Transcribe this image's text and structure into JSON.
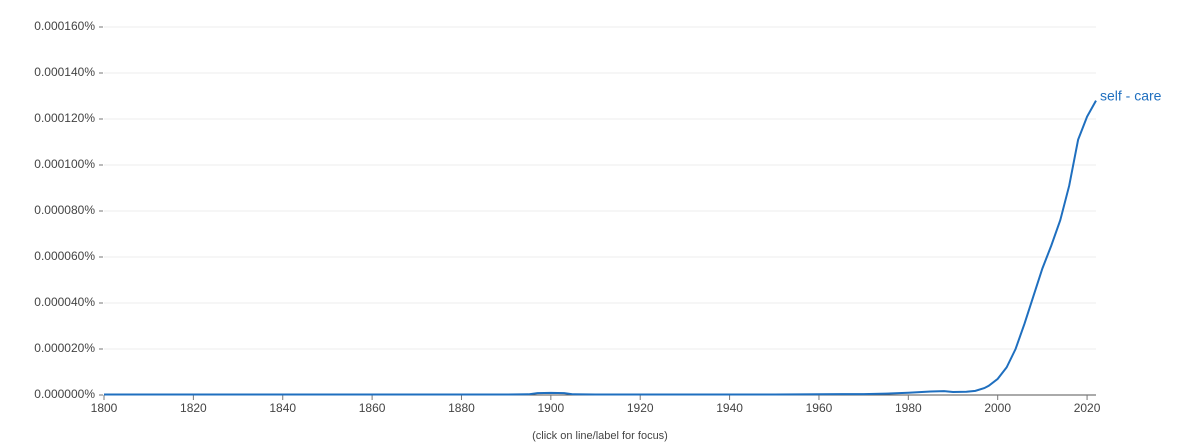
{
  "chart_data": {
    "type": "line",
    "note": "(click on line/label for focus)",
    "x": [
      1800,
      1810,
      1820,
      1830,
      1840,
      1850,
      1860,
      1870,
      1880,
      1890,
      1895,
      1897,
      1900,
      1903,
      1905,
      1910,
      1920,
      1930,
      1940,
      1950,
      1960,
      1965,
      1970,
      1975,
      1980,
      1985,
      1988,
      1990,
      1993,
      1995,
      1997,
      1998,
      2000,
      2002,
      2004,
      2006,
      2008,
      2010,
      2012,
      2014,
      2016,
      2018,
      2020,
      2022
    ],
    "series": [
      {
        "name": "self - care",
        "color": "#1f6fbf",
        "values": [
          2e-07,
          2e-07,
          2e-07,
          2e-07,
          2e-07,
          2e-07,
          2e-07,
          2e-07,
          2e-07,
          2e-07,
          3e-07,
          8e-07,
          9e-07,
          8e-07,
          3e-07,
          2e-07,
          2e-07,
          2e-07,
          2e-07,
          2e-07,
          3e-07,
          4e-07,
          4e-07,
          6e-07,
          1e-06,
          1.5e-06,
          1.7e-06,
          1.3e-06,
          1.4e-06,
          1.8e-06,
          3e-06,
          4e-06,
          7e-06,
          1.2e-05,
          2e-05,
          3.1e-05,
          4.3e-05,
          5.5e-05,
          6.5e-05,
          7.6e-05,
          9.1e-05,
          0.000111,
          0.000121,
          0.000128
        ]
      }
    ],
    "xlim": [
      1800,
      2022
    ],
    "ylim": [
      0,
      0.00016
    ],
    "xticks": [
      1800,
      1820,
      1840,
      1860,
      1880,
      1900,
      1920,
      1940,
      1960,
      1980,
      2000,
      2020
    ],
    "yticks": [
      {
        "value": 0,
        "label": "0.000000%"
      },
      {
        "value": 2e-05,
        "label": "0.000020%"
      },
      {
        "value": 4e-05,
        "label": "0.000040%"
      },
      {
        "value": 6e-05,
        "label": "0.000060%"
      },
      {
        "value": 8e-05,
        "label": "0.000080%"
      },
      {
        "value": 0.0001,
        "label": "0.000100%"
      },
      {
        "value": 0.00012,
        "label": "0.000120%"
      },
      {
        "value": 0.00014,
        "label": "0.000140%"
      },
      {
        "value": 0.00016,
        "label": "0.000160%"
      }
    ],
    "grid": true
  }
}
